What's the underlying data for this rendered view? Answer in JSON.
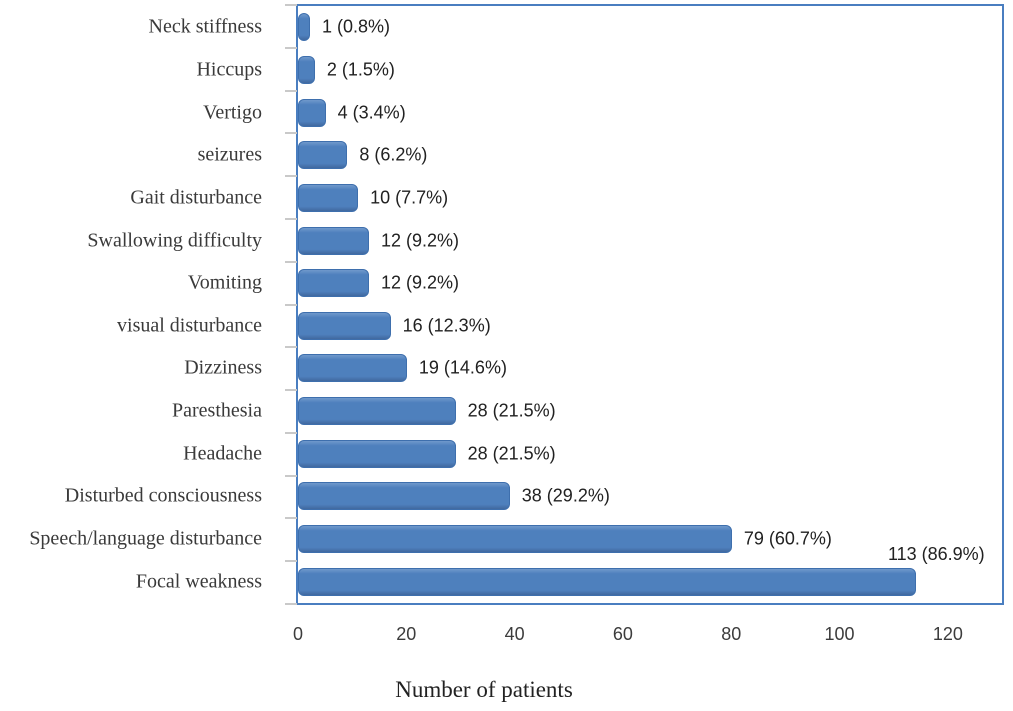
{
  "chart_data": {
    "type": "bar",
    "orientation": "horizontal",
    "title": "",
    "xlabel": "Number of patients",
    "ylabel": "",
    "xlim": [
      0,
      130
    ],
    "x_ticks": [
      0,
      20,
      40,
      60,
      80,
      100,
      120
    ],
    "grid": false,
    "legend": false,
    "bar_color": "#4e80bd",
    "bar_border_color": "#3e6fad",
    "plot_border_color": "#4a7ec0",
    "tick_color": "#c9c9c9",
    "categories_top_to_bottom": [
      "Neck stiffness",
      "Hiccups",
      "Vertigo",
      "seizures",
      "Gait disturbance",
      "Swallowing difficulty",
      "Vomiting",
      "visual disturbance",
      "Dizziness",
      "Paresthesia",
      "Headache",
      "Disturbed consciousness",
      "Speech/language disturbance",
      "Focal weakness"
    ],
    "values": [
      1,
      2,
      4,
      8,
      10,
      12,
      12,
      16,
      19,
      28,
      28,
      38,
      79,
      113
    ],
    "percents": [
      0.8,
      1.5,
      3.4,
      6.2,
      7.7,
      9.2,
      9.2,
      12.3,
      14.6,
      21.5,
      21.5,
      29.2,
      60.7,
      86.9
    ],
    "data_labels": [
      "1 (0.8%)",
      "2 (1.5%)",
      "4 (3.4%)",
      "8 (6.2%)",
      "10 (7.7%)",
      "12 (9.2%)",
      "12 (9.2%)",
      "16 (12.3%)",
      "19 (14.6%)",
      "28 (21.5%)",
      "28 (21.5%)",
      "38 (29.2%)",
      "79 (60.7%)",
      "113 (86.9%)"
    ],
    "label_positions": [
      "right",
      "right",
      "right",
      "right",
      "right",
      "right",
      "right",
      "right",
      "right",
      "right",
      "right",
      "right",
      "right",
      "above-end"
    ]
  }
}
